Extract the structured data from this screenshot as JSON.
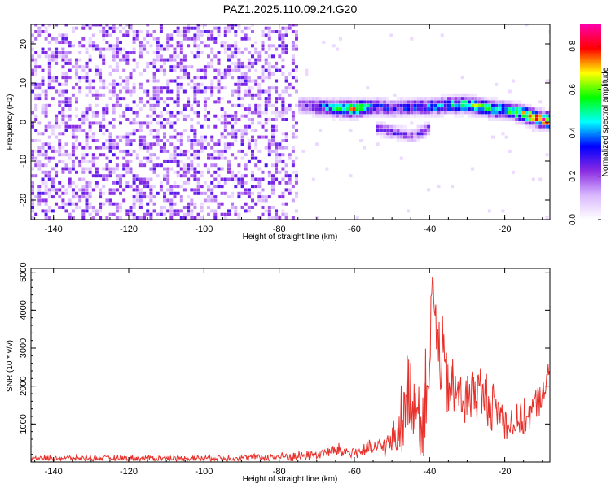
{
  "chart_data": [
    {
      "type": "heatmap",
      "title": "PAZ1.2025.110.09.24.G20",
      "xlabel": "Height of straight line (km)",
      "ylabel": "Frequency (Hz)",
      "xlim": [
        -146,
        -8
      ],
      "ylim": [
        -25,
        25
      ],
      "xticks": [
        -140,
        -120,
        -100,
        -80,
        -60,
        -40,
        -20
      ],
      "yticks": [
        -20,
        -10,
        0,
        10,
        20
      ],
      "colorbar": {
        "label": "Normalized spectral amplitude",
        "range": [
          0,
          0.9
        ],
        "ticks": [
          "0.0",
          "0.2",
          "0.4",
          "0.6",
          "0.8"
        ],
        "colors": [
          "#ffffff",
          "#d9b8ff",
          "#8a2be2",
          "#0000ff",
          "#00ffff",
          "#00ff00",
          "#ffff00",
          "#ff0000",
          "#ff00aa"
        ]
      },
      "noise_region_km": [
        -146,
        -75
      ],
      "ridge": {
        "x": [
          -75,
          -70,
          -65,
          -60,
          -55,
          -50,
          -45,
          -40,
          -35,
          -30,
          -25,
          -20,
          -15,
          -10,
          -8
        ],
        "freq": [
          4,
          3.5,
          3,
          3,
          3.5,
          3,
          3.5,
          3.5,
          4,
          4,
          3,
          2.5,
          1.5,
          0,
          0
        ],
        "amp": [
          0.2,
          0.35,
          0.5,
          0.7,
          0.35,
          0.3,
          0.35,
          0.4,
          0.45,
          0.55,
          0.6,
          0.5,
          0.65,
          0.8,
          0.75
        ]
      },
      "branch": {
        "x": [
          -55,
          -50,
          -45,
          -40
        ],
        "freq": [
          -2,
          -3,
          -4,
          -2
        ],
        "amp": [
          0.25,
          0.3,
          0.25,
          0.3
        ]
      }
    },
    {
      "type": "line",
      "title": "",
      "xlabel": "Height of straight line (km)",
      "ylabel": "SNR (10 * v/v)",
      "xlim": [
        -146,
        -8
      ],
      "ylim": [
        0,
        5100
      ],
      "xticks": [
        -140,
        -120,
        -100,
        -80,
        -60,
        -40,
        -20
      ],
      "yticks": [
        1000,
        2000,
        3000,
        4000,
        5000
      ],
      "color": "#e8302a",
      "envelope": {
        "x": [
          -146,
          -120,
          -100,
          -85,
          -75,
          -70,
          -65,
          -60,
          -55,
          -50,
          -47,
          -45,
          -42,
          -40,
          -39,
          -38,
          -36,
          -34,
          -32,
          -30,
          -28,
          -25,
          -22,
          -20,
          -17,
          -14,
          -11,
          -8
        ],
        "base": [
          100,
          100,
          100,
          120,
          150,
          200,
          300,
          250,
          350,
          500,
          1200,
          2000,
          1000,
          3000,
          4800,
          3000,
          2400,
          1800,
          1800,
          1600,
          1900,
          1700,
          1400,
          1100,
          1000,
          1200,
          1600,
          2300
        ],
        "amp": [
          80,
          80,
          90,
          100,
          150,
          150,
          220,
          200,
          250,
          400,
          1200,
          1300,
          1400,
          1800,
          600,
          1600,
          1200,
          1000,
          900,
          900,
          900,
          800,
          700,
          600,
          500,
          500,
          500,
          400
        ]
      }
    }
  ]
}
